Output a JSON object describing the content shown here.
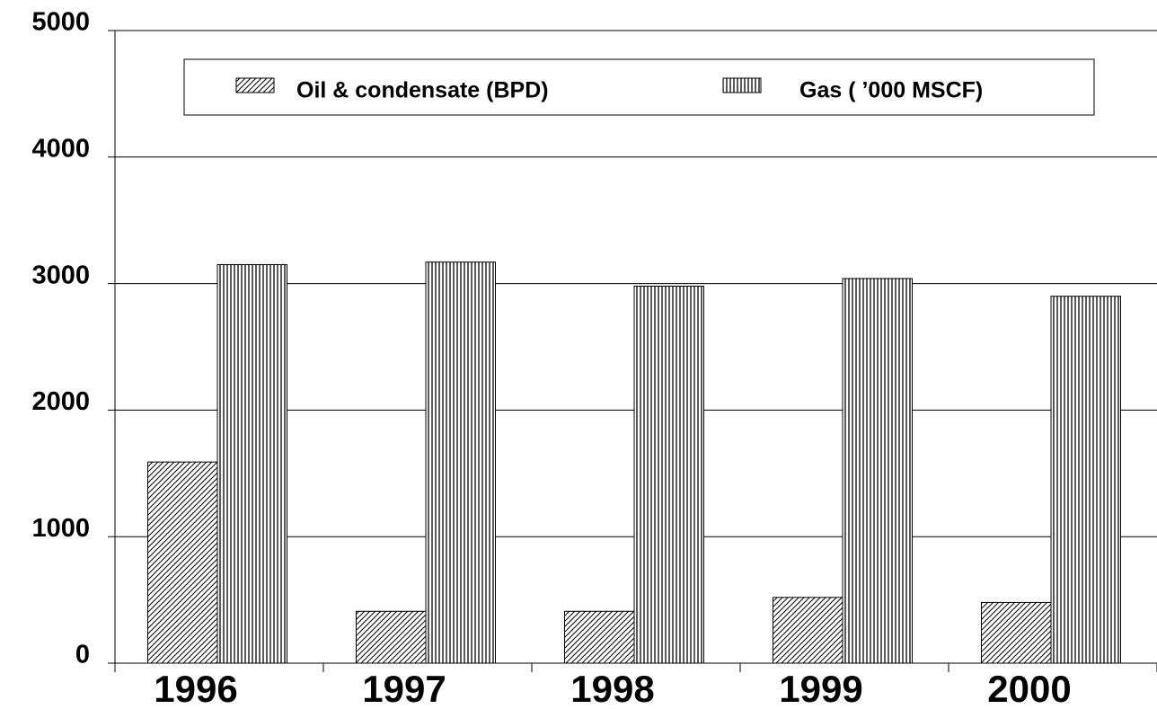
{
  "chart_data": {
    "type": "bar",
    "categories": [
      "1996",
      "1997",
      "1998",
      "1999",
      "2000"
    ],
    "series": [
      {
        "name": "Oil & condensate (BPD)",
        "color": "#000000",
        "pattern": "diagonal",
        "values": [
          1590,
          410,
          410,
          520,
          480
        ]
      },
      {
        "name": "Gas ( ’000 MSCF)",
        "color": "#000000",
        "pattern": "vertical",
        "values": [
          3150,
          3170,
          2980,
          3040,
          2900
        ]
      }
    ],
    "ylim": [
      0,
      5000
    ],
    "yticks": [
      0,
      1000,
      2000,
      3000,
      4000,
      5000
    ],
    "grid": true,
    "legend": "top"
  }
}
